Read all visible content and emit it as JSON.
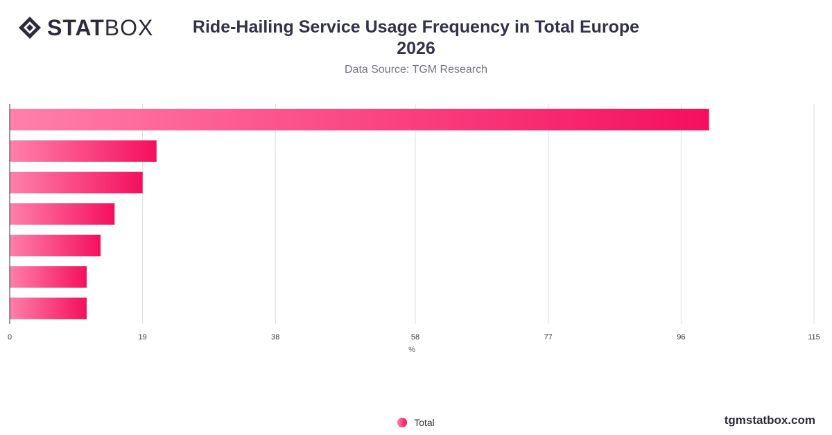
{
  "brand": {
    "logo_bold": "STAT",
    "logo_light": "BOX",
    "website": "tgmstatbox.com"
  },
  "colors": {
    "bar_start": "#ff80ab",
    "bar_end": "#f50f5e",
    "grid": "#dddddd",
    "axis": "#333333"
  },
  "chart_data": {
    "type": "bar",
    "orientation": "horizontal",
    "title": "Ride-Hailing Service Usage Frequency in Total Europe",
    "title_line2": "2026",
    "subtitle": "Data Source: TGM Research",
    "xlabel": "%",
    "xlim": [
      0,
      115
    ],
    "xticks": [
      0,
      19,
      38,
      58,
      77,
      96,
      115
    ],
    "grid": true,
    "legend_position": "bottom-center",
    "categories": [
      "",
      "",
      "",
      "",
      "",
      "",
      ""
    ],
    "series": [
      {
        "name": "Total",
        "values": [
          100,
          21,
          19,
          15,
          13,
          11,
          11
        ]
      }
    ]
  }
}
